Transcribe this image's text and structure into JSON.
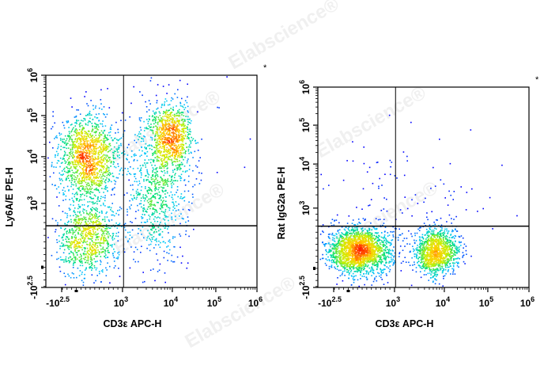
{
  "chart_data": [
    {
      "type": "scatter",
      "subtype": "flow-cytometry-density-dot-plot",
      "xlabel": "CD3ε APC-H",
      "ylabel": "Ly6A/E PE-H",
      "corner_mark": "*",
      "x_scale": "biexponential",
      "y_scale": "biexponential",
      "x_ticks": [
        {
          "value": -316,
          "base": "-10",
          "exp": "2.5"
        },
        {
          "value": 1000,
          "base": "10",
          "exp": "3"
        },
        {
          "value": 10000,
          "base": "10",
          "exp": "4"
        },
        {
          "value": 100000,
          "base": "10",
          "exp": "5"
        },
        {
          "value": 1000000,
          "base": "10",
          "exp": "6"
        }
      ],
      "y_ticks": [
        {
          "value": -316,
          "base": "-10",
          "exp": "2.5"
        },
        {
          "value": 1000,
          "base": "10",
          "exp": "3"
        },
        {
          "value": 10000,
          "base": "10",
          "exp": "4"
        },
        {
          "value": 100000,
          "base": "10",
          "exp": "5"
        },
        {
          "value": 1000000,
          "base": "10",
          "exp": "6"
        }
      ],
      "quadrant_gate": {
        "x": 1050,
        "y": 650
      },
      "populations": [
        {
          "x": 235,
          "y": 10000,
          "events": 1400,
          "sd_x_decades": 0.35,
          "sd_y_decades": 0.5
        },
        {
          "x": 235,
          "y": 470,
          "events": 900,
          "sd_x_decades": 0.35,
          "sd_y_decades": 0.45
        },
        {
          "x": 10000,
          "y": 30000,
          "events": 700,
          "sd_x_decades": 0.22,
          "sd_y_decades": 0.35
        },
        {
          "x": 5000,
          "y": 3000,
          "events": 900,
          "sd_x_decades": 0.35,
          "sd_y_decades": 0.9
        },
        {
          "x": 30000,
          "y": 20000,
          "events": 25,
          "sd_x_decades": 0.8,
          "sd_y_decades": 0.6
        }
      ]
    },
    {
      "type": "scatter",
      "subtype": "flow-cytometry-density-dot-plot",
      "xlabel": "CD3ε APC-H",
      "ylabel": "Rat IgG2a PE-H",
      "corner_mark": "*",
      "x_scale": "biexponential",
      "y_scale": "biexponential",
      "x_ticks": [
        {
          "value": -316,
          "base": "-10",
          "exp": "2.5"
        },
        {
          "value": 1000,
          "base": "10",
          "exp": "3"
        },
        {
          "value": 10000,
          "base": "10",
          "exp": "4"
        },
        {
          "value": 100000,
          "base": "10",
          "exp": "5"
        },
        {
          "value": 1000000,
          "base": "10",
          "exp": "6"
        }
      ],
      "y_ticks": [
        {
          "value": -316,
          "base": "-10",
          "exp": "2.5"
        },
        {
          "value": 1000,
          "base": "10",
          "exp": "3"
        },
        {
          "value": 10000,
          "base": "10",
          "exp": "4"
        },
        {
          "value": 100000,
          "base": "10",
          "exp": "5"
        },
        {
          "value": 1000000,
          "base": "10",
          "exp": "6"
        }
      ],
      "quadrant_gate": {
        "x": 1050,
        "y": 700
      },
      "populations": [
        {
          "x": 235,
          "y": 300,
          "events": 2000,
          "sd_x_decades": 0.35,
          "sd_y_decades": 0.28
        },
        {
          "x": 7000,
          "y": 300,
          "events": 1200,
          "sd_x_decades": 0.25,
          "sd_y_decades": 0.28
        },
        {
          "x": 1500,
          "y": 3000,
          "events": 90,
          "sd_x_decades": 1.0,
          "sd_y_decades": 0.7
        }
      ]
    }
  ],
  "density_colors": [
    "#0000ff",
    "#00c8ff",
    "#00e070",
    "#c8f000",
    "#ffd000",
    "#ff2000"
  ],
  "watermark": "Elabscience®"
}
